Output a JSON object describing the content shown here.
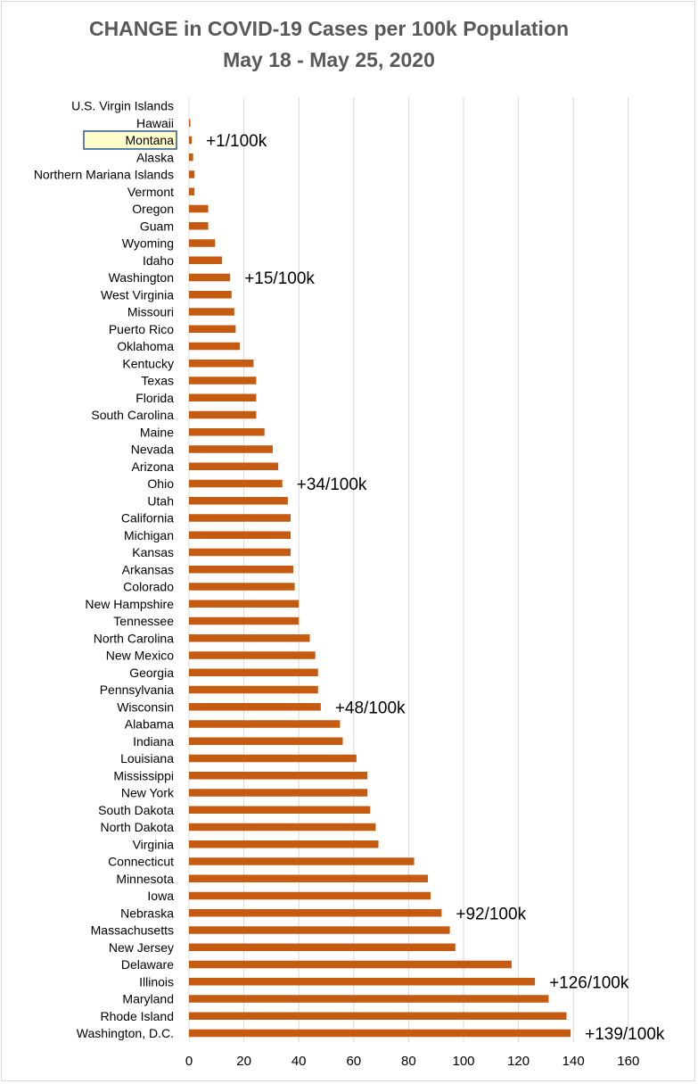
{
  "colors": {
    "bar": "#c55a11",
    "highlight_fill": "#ffffcc",
    "highlight_border": "#2f5597",
    "highlight_text": "#7f6000",
    "grid": "#d9d9d9",
    "title": "#595959"
  },
  "chart_data": {
    "type": "bar",
    "orientation": "horizontal",
    "title": "CHANGE in COVID-19 Cases per 100k Population",
    "subtitle": "May 18 - May 25, 2020",
    "xlabel": "",
    "ylabel": "",
    "xlim": [
      0,
      160
    ],
    "xticks": [
      "0",
      "20",
      "40",
      "60",
      "80",
      "100",
      "120",
      "140",
      "160"
    ],
    "grid": "vertical",
    "legend": "none",
    "highlighted_category": "Montana",
    "categories": [
      "U.S. Virgin Islands",
      "Hawaii",
      "Montana",
      "Alaska",
      "Northern Mariana Islands",
      "Vermont",
      "Oregon",
      "Guam",
      "Wyoming",
      "Idaho",
      "Washington",
      "West Virginia",
      "Missouri",
      "Puerto Rico",
      "Oklahoma",
      "Kentucky",
      "Texas",
      "Florida",
      "South Carolina",
      "Maine",
      "Nevada",
      "Arizona",
      "Ohio",
      "Utah",
      "California",
      "Michigan",
      "Kansas",
      "Arkansas",
      "Colorado",
      "New Hampshire",
      "Tennessee",
      "North Carolina",
      "New Mexico",
      "Georgia",
      "Pennsylvania",
      "Wisconsin",
      "Alabama",
      "Indiana",
      "Louisiana",
      "Mississippi",
      "New York",
      "South Dakota",
      "North Dakota",
      "Virginia",
      "Connecticut",
      "Minnesota",
      "Iowa",
      "Nebraska",
      "Massachusetts",
      "New Jersey",
      "Delaware",
      "Illinois",
      "Maryland",
      "Rhode Island",
      "Washington, D.C."
    ],
    "values": [
      0,
      0.5,
      1,
      1.5,
      2,
      2,
      7,
      7,
      9.5,
      12,
      15,
      15.5,
      16.5,
      17,
      18.5,
      23.5,
      24.5,
      24.5,
      24.5,
      27.5,
      30.5,
      32.5,
      34,
      36,
      37,
      37,
      37,
      38,
      38.5,
      40,
      40,
      44,
      46,
      47,
      47,
      48,
      55,
      56,
      61,
      65,
      65,
      66,
      68,
      69,
      82,
      87,
      88,
      92,
      95,
      97,
      117.5,
      126,
      131,
      137.5,
      139
    ],
    "annotations": [
      {
        "category": "Montana",
        "text": "+1/100k"
      },
      {
        "category": "Washington",
        "text": "+15/100k"
      },
      {
        "category": "Ohio",
        "text": "+34/100k"
      },
      {
        "category": "Wisconsin",
        "text": "+48/100k"
      },
      {
        "category": "Nebraska",
        "text": "+92/100k"
      },
      {
        "category": "Illinois",
        "text": "+126/100k"
      },
      {
        "category": "Washington, D.C.",
        "text": "+139/100k"
      }
    ]
  }
}
